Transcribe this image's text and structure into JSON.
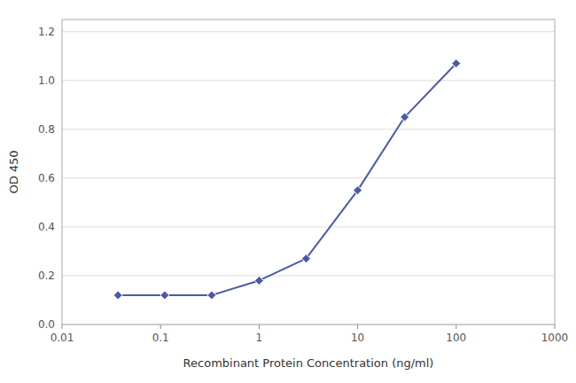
{
  "chart_data": {
    "type": "line",
    "x": [
      0.037,
      0.11,
      0.33,
      1.0,
      3.0,
      10.0,
      30.0,
      100.0
    ],
    "values": [
      0.12,
      0.12,
      0.12,
      0.18,
      0.27,
      0.55,
      0.85,
      1.07
    ],
    "color": "#4a5aaa",
    "marker": "diamond",
    "x_label": "Recombinant Protein Concentration (ng/ml)",
    "y_label": "OD 450",
    "log": "x",
    "xlim": [
      0.01,
      1000
    ],
    "ylim": [
      0.0,
      1.25
    ],
    "xticks": [
      0.01,
      0.1,
      1,
      10,
      100,
      1000
    ],
    "yticks": [
      {
        "value": 0.0,
        "label": "0.0"
      },
      0.2,
      0.4,
      0.6,
      0.8,
      {
        "value": 1.0,
        "label": "1.0"
      },
      1.2
    ],
    "grid": "y"
  }
}
